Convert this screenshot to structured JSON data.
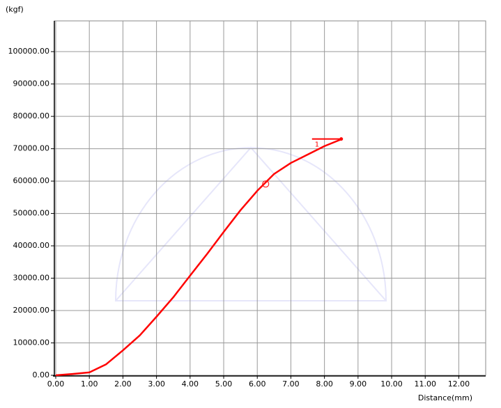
{
  "chart_data": {
    "type": "line",
    "y_label": "(kgf)",
    "x_label": "Distance(mm)",
    "xlim": [
      0,
      12.8
    ],
    "ylim": [
      0,
      109500
    ],
    "xticks": [
      {
        "value": 0,
        "label": "0.00"
      },
      {
        "value": 1,
        "label": "1.00"
      },
      {
        "value": 2,
        "label": "2.00"
      },
      {
        "value": 3,
        "label": "3.00"
      },
      {
        "value": 4,
        "label": "4.00"
      },
      {
        "value": 5,
        "label": "5.00"
      },
      {
        "value": 6,
        "label": "6.00"
      },
      {
        "value": 7,
        "label": "7.00"
      },
      {
        "value": 8,
        "label": "8.00"
      },
      {
        "value": 9,
        "label": "9.00"
      },
      {
        "value": 10,
        "label": "10.00"
      },
      {
        "value": 11,
        "label": "11.00"
      },
      {
        "value": 12,
        "label": "12.00"
      }
    ],
    "yticks": [
      {
        "value": 0,
        "label": "0.00"
      },
      {
        "value": 10000,
        "label": "10000.00"
      },
      {
        "value": 20000,
        "label": "20000.00"
      },
      {
        "value": 30000,
        "label": "30000.00"
      },
      {
        "value": 40000,
        "label": "40000.00"
      },
      {
        "value": 50000,
        "label": "50000.00"
      },
      {
        "value": 60000,
        "label": "60000.00"
      },
      {
        "value": 70000,
        "label": "70000.00"
      },
      {
        "value": 80000,
        "label": "80000.00"
      },
      {
        "value": 90000,
        "label": "90000.00"
      },
      {
        "value": 100000,
        "label": "100000.00"
      }
    ],
    "grid": true,
    "series": [
      {
        "color": "#ff0000",
        "x": [
          0,
          0.5,
          1.0,
          1.5,
          2.0,
          2.5,
          3.0,
          3.5,
          4.0,
          4.5,
          5.0,
          5.5,
          6.0,
          6.5,
          7.0,
          7.5,
          8.0,
          8.5
        ],
        "values": [
          0,
          400,
          900,
          3400,
          7700,
          12300,
          18100,
          24100,
          30800,
          37400,
          44300,
          51000,
          57000,
          62200,
          65600,
          68200,
          70800,
          72900
        ]
      }
    ],
    "marker": {
      "x": 6.25,
      "y": 59100
    },
    "peak": {
      "x_start": 7.63,
      "x_end": 8.5,
      "y": 73000,
      "label": "1"
    }
  }
}
